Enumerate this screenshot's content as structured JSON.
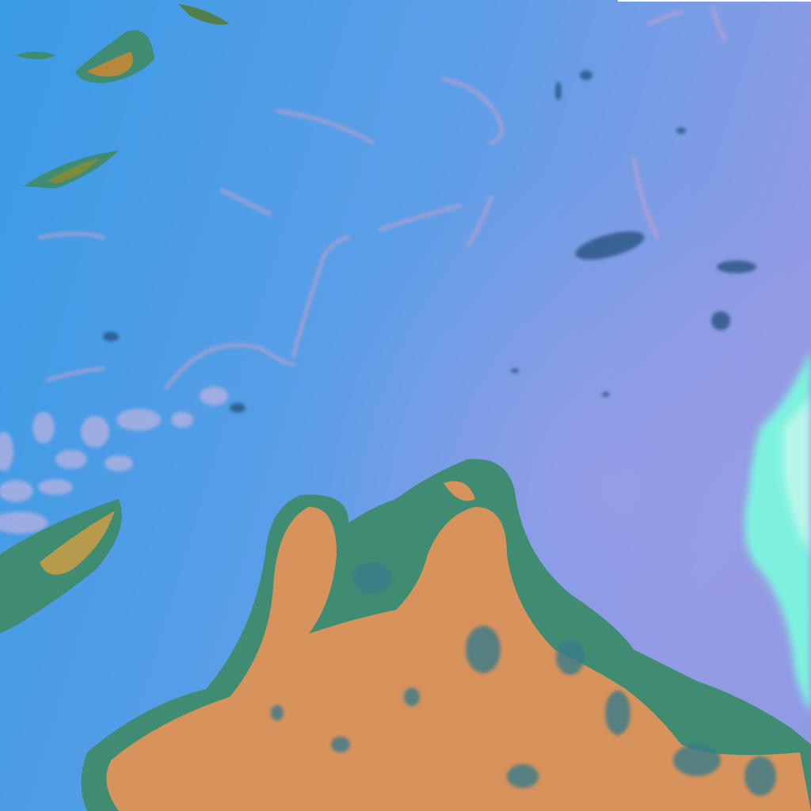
{
  "image": {
    "kind": "false-color satellite view",
    "colors": {
      "ocean_left": "#3a9be4",
      "ocean_right": "#8f9be6",
      "land": "#d8925c",
      "land_edge": "#3f8c72",
      "vegetation": "#6f8a3a",
      "cloud_cyan": "#7ff2df",
      "thin_cloud": "#c9a3c8",
      "dark_speckle": "#1f4f7a"
    }
  }
}
